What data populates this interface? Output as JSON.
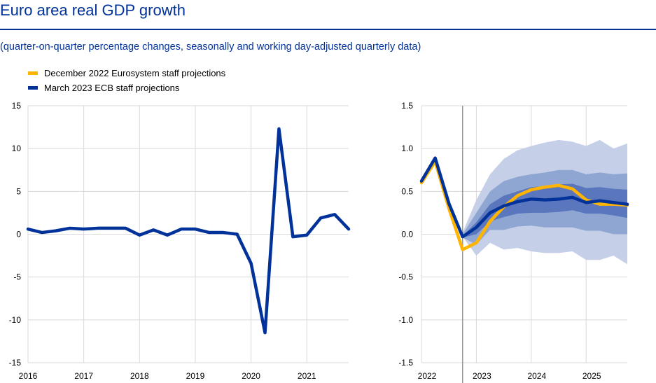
{
  "title": "Euro area real GDP growth",
  "subtitle": "(quarter-on-quarter percentage changes, seasonally and working day-adjusted quarterly data)",
  "legend": [
    {
      "label": "December 2022 Eurosystem staff projections",
      "color": "#FFB400"
    },
    {
      "label": "March 2023 ECB staff projections",
      "color": "#003299"
    }
  ],
  "chart_data": [
    {
      "type": "line",
      "ylim": [
        -15,
        15
      ],
      "xlim": [
        2016,
        2021.75
      ],
      "yticks": [
        "15",
        "10",
        "5",
        "0",
        "-5",
        "-10",
        "-15"
      ],
      "ytick_values": [
        15,
        10,
        5,
        0,
        -5,
        -10,
        -15
      ],
      "xticks": [
        "2016",
        "2017",
        "2018",
        "2019",
        "2020",
        "2021"
      ],
      "xtick_values": [
        2016,
        2017,
        2018,
        2019,
        2020,
        2021
      ],
      "grid": true,
      "series": [
        {
          "name": "March 2023 ECB staff projections",
          "color": "#003299",
          "x": [
            2016.0,
            2016.25,
            2016.5,
            2016.75,
            2017.0,
            2017.25,
            2017.5,
            2017.75,
            2018.0,
            2018.25,
            2018.5,
            2018.75,
            2019.0,
            2019.25,
            2019.5,
            2019.75,
            2020.0,
            2020.25,
            2020.5,
            2020.75,
            2021.0,
            2021.25,
            2021.5,
            2021.75
          ],
          "values": [
            0.6,
            0.2,
            0.4,
            0.7,
            0.6,
            0.7,
            0.7,
            0.7,
            -0.1,
            0.5,
            -0.1,
            0.6,
            0.6,
            0.2,
            0.2,
            0.0,
            -3.4,
            -11.5,
            12.3,
            -0.3,
            -0.1,
            1.9,
            2.3,
            0.6
          ]
        }
      ]
    },
    {
      "type": "line",
      "ylim": [
        -1.5,
        1.5
      ],
      "xlim": [
        2022,
        2025.75
      ],
      "yticks": [
        "1.5",
        "1.0",
        "0.5",
        "0.0",
        "-0.5",
        "-1.0",
        "-1.5"
      ],
      "ytick_values": [
        1.5,
        1.0,
        0.5,
        0.0,
        -0.5,
        -1.0,
        -1.5
      ],
      "xticks": [
        "2022",
        "2023",
        "2024",
        "2025"
      ],
      "xtick_values": [
        2022,
        2023,
        2024,
        2025
      ],
      "projection_start": 2022.75,
      "grid": true,
      "bands": [
        {
          "name": "outer range",
          "color": "#C5D0E8",
          "x": [
            2022.75,
            2023.0,
            2023.25,
            2023.5,
            2023.75,
            2024.0,
            2024.25,
            2024.5,
            2024.75,
            2025.0,
            2025.25,
            2025.5,
            2025.75
          ],
          "upper": [
            0.02,
            0.4,
            0.7,
            0.88,
            0.98,
            1.03,
            1.07,
            1.1,
            1.08,
            1.03,
            1.1,
            1.0,
            1.06
          ],
          "lower": [
            -0.03,
            -0.25,
            -0.1,
            -0.18,
            -0.16,
            -0.2,
            -0.22,
            -0.22,
            -0.2,
            -0.3,
            -0.3,
            -0.25,
            -0.35
          ]
        },
        {
          "name": "middle range",
          "color": "#8FA6D3",
          "x": [
            2022.75,
            2023.0,
            2023.25,
            2023.5,
            2023.75,
            2024.0,
            2024.25,
            2024.5,
            2024.75,
            2025.0,
            2025.25,
            2025.5,
            2025.75
          ],
          "upper": [
            0.0,
            0.25,
            0.5,
            0.62,
            0.67,
            0.7,
            0.72,
            0.75,
            0.75,
            0.7,
            0.72,
            0.7,
            0.71
          ],
          "lower": [
            -0.04,
            -0.12,
            0.05,
            0.05,
            0.09,
            0.1,
            0.08,
            0.08,
            0.08,
            0.04,
            0.04,
            0.0,
            0.0
          ]
        },
        {
          "name": "inner range",
          "color": "#5A77BE",
          "x": [
            2022.75,
            2023.0,
            2023.25,
            2023.5,
            2023.75,
            2024.0,
            2024.25,
            2024.5,
            2024.75,
            2025.0,
            2025.25,
            2025.5,
            2025.75
          ],
          "upper": [
            -0.02,
            0.14,
            0.35,
            0.45,
            0.5,
            0.55,
            0.56,
            0.58,
            0.59,
            0.54,
            0.55,
            0.53,
            0.52
          ],
          "lower": [
            -0.04,
            0.0,
            0.15,
            0.2,
            0.24,
            0.25,
            0.25,
            0.26,
            0.28,
            0.24,
            0.24,
            0.22,
            0.19
          ]
        }
      ],
      "series": [
        {
          "name": "December 2022 Eurosystem staff projections",
          "color": "#FFB400",
          "x": [
            2022.0,
            2022.25,
            2022.5,
            2022.75,
            2023.0,
            2023.25,
            2023.5,
            2023.75,
            2024.0,
            2024.25,
            2024.5,
            2024.75,
            2025.0,
            2025.25,
            2025.5,
            2025.75
          ],
          "values": [
            0.6,
            0.85,
            0.3,
            -0.18,
            -0.1,
            0.15,
            0.32,
            0.45,
            0.52,
            0.55,
            0.57,
            0.53,
            0.4,
            0.35,
            0.35,
            0.34
          ]
        },
        {
          "name": "March 2023 ECB staff projections",
          "color": "#003299",
          "x": [
            2022.0,
            2022.25,
            2022.5,
            2022.75,
            2023.0,
            2023.25,
            2023.5,
            2023.75,
            2024.0,
            2024.25,
            2024.5,
            2024.75,
            2025.0,
            2025.25,
            2025.5,
            2025.75
          ],
          "values": [
            0.62,
            0.89,
            0.36,
            -0.03,
            0.08,
            0.25,
            0.33,
            0.38,
            0.41,
            0.4,
            0.41,
            0.43,
            0.37,
            0.39,
            0.37,
            0.35
          ]
        }
      ]
    }
  ]
}
